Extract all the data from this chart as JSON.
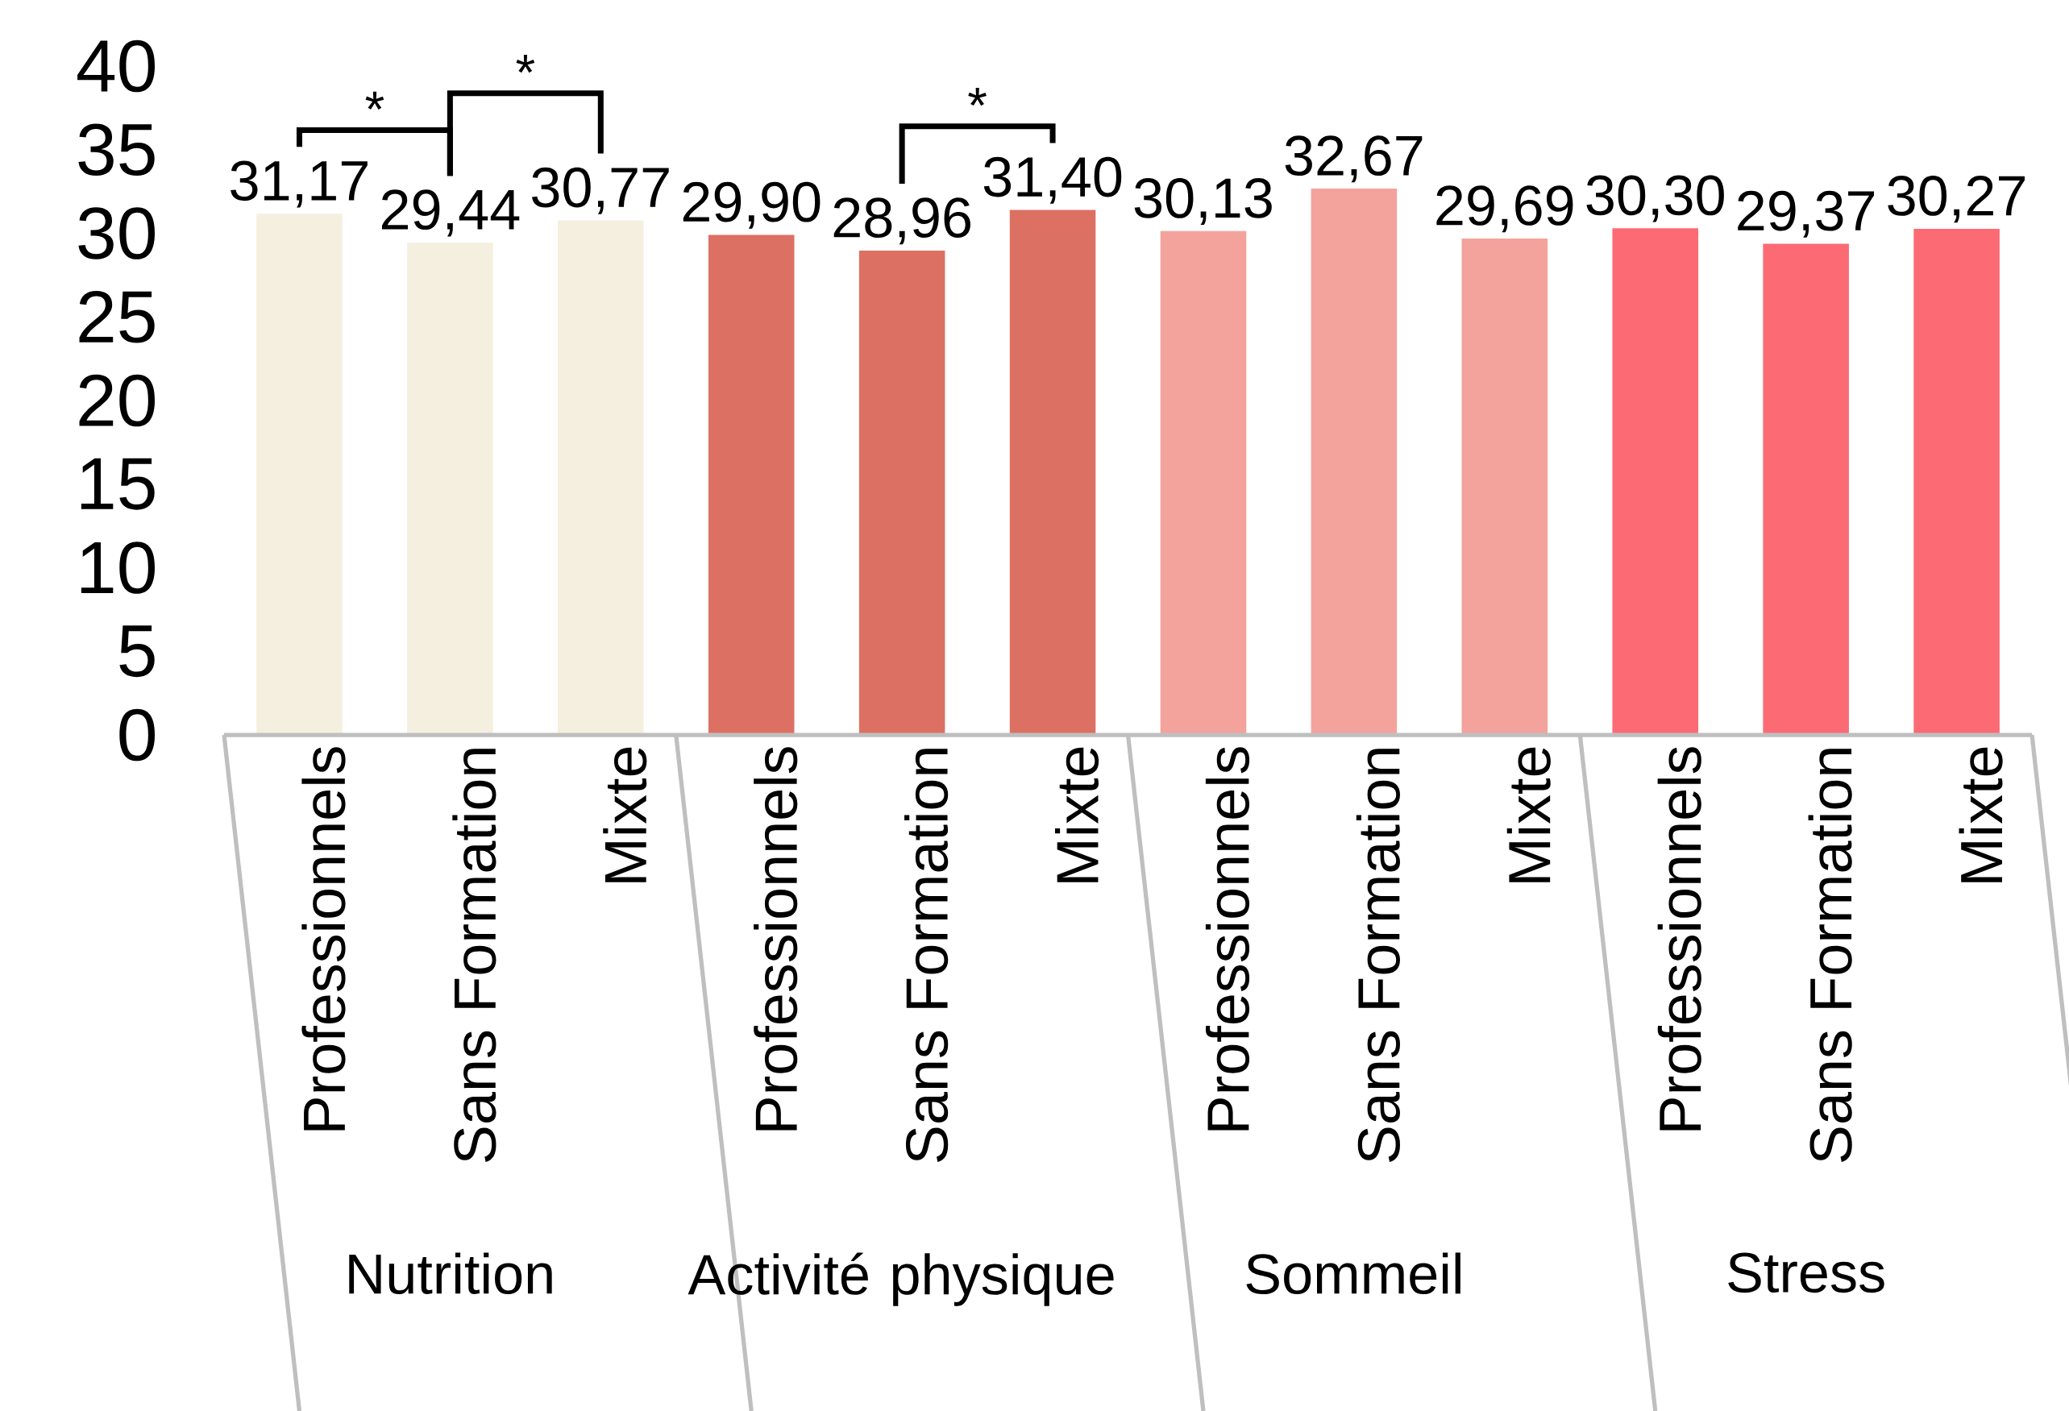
{
  "chart_data": {
    "type": "bar",
    "categories": [
      "Professionnels",
      "Sans Formation",
      "Mixte",
      "Professionnels",
      "Sans Formation",
      "Mixte",
      "Professionnels",
      "Sans Formation",
      "Mixte",
      "Professionnels",
      "Sans Formation",
      "Mixte"
    ],
    "values": [
      31.17,
      29.44,
      30.77,
      29.9,
      28.96,
      31.4,
      30.13,
      32.67,
      29.69,
      30.3,
      29.37,
      30.27
    ],
    "value_labels": [
      "31,17",
      "29,44",
      "30,77",
      "29,90",
      "28,96",
      "31,40",
      "30,13",
      "32,67",
      "29,69",
      "30,30",
      "29,37",
      "30,27"
    ],
    "colors": [
      "#f5efe0",
      "#f5efe0",
      "#f5efe0",
      "#dc7163",
      "#dc7163",
      "#dc7163",
      "#f3a39c",
      "#f3a39c",
      "#f3a39c",
      "#fc6a74",
      "#fc6a74",
      "#fc6a74"
    ],
    "ylim": [
      0,
      40
    ],
    "yticks": [
      0,
      5,
      10,
      15,
      20,
      25,
      30,
      35,
      40
    ],
    "annotations": [
      "*",
      "*",
      "*",
      "Nutrition",
      "Activité physique",
      "Sommeil",
      "Stress"
    ]
  }
}
